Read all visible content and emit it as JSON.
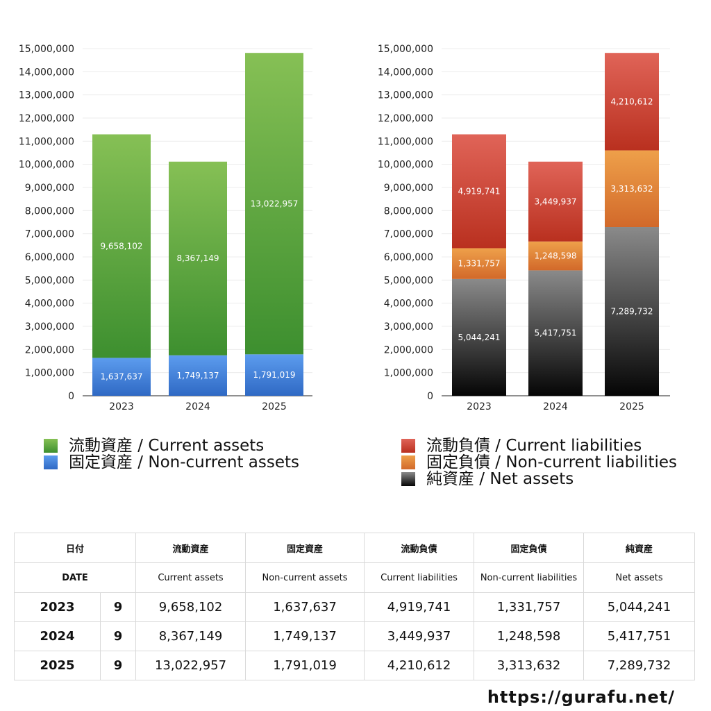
{
  "colors": {
    "current_assets": [
      "#86c055",
      "#3d8f2f"
    ],
    "noncurrent_assets": [
      "#5c9cee",
      "#2f69c4"
    ],
    "current_liabilities": [
      "#e06458",
      "#b9301f"
    ],
    "noncurrent_liabilities": [
      "#eea04a",
      "#d2692a"
    ],
    "net_assets": [
      "#8a8a8a",
      "#050505"
    ]
  },
  "chart_data": [
    {
      "type": "bar",
      "stacked": true,
      "categories": [
        "2023",
        "2024",
        "2025"
      ],
      "ylim": [
        0,
        15000000
      ],
      "yticks": [
        0,
        1000000,
        2000000,
        3000000,
        4000000,
        5000000,
        6000000,
        7000000,
        8000000,
        9000000,
        10000000,
        11000000,
        12000000,
        13000000,
        14000000,
        15000000
      ],
      "ytick_labels": [
        "0",
        "1,000,000",
        "2,000,000",
        "3,000,000",
        "4,000,000",
        "5,000,000",
        "6,000,000",
        "7,000,000",
        "8,000,000",
        "9,000,000",
        "10,000,000",
        "11,000,000",
        "12,000,000",
        "13,000,000",
        "14,000,000",
        "15,000,000"
      ],
      "series": [
        {
          "name": "固定資産 / Non-current assets",
          "key": "noncurrent_assets",
          "values": [
            1637637,
            1749137,
            1791019
          ],
          "labels": [
            "1,637,637",
            "1,749,137",
            "1,791,019"
          ]
        },
        {
          "name": "流動資産 / Current assets",
          "key": "current_assets",
          "values": [
            9658102,
            8367149,
            13022957
          ],
          "labels": [
            "9,658,102",
            "8,367,149",
            "13,022,957"
          ]
        }
      ],
      "legend": [
        {
          "label": "流動資産 / Current assets",
          "key": "current_assets"
        },
        {
          "label": "固定資産 / Non-current assets",
          "key": "noncurrent_assets"
        }
      ],
      "legend_position": "bottom"
    },
    {
      "type": "bar",
      "stacked": true,
      "categories": [
        "2023",
        "2024",
        "2025"
      ],
      "ylim": [
        0,
        15000000
      ],
      "yticks": [
        0,
        1000000,
        2000000,
        3000000,
        4000000,
        5000000,
        6000000,
        7000000,
        8000000,
        9000000,
        10000000,
        11000000,
        12000000,
        13000000,
        14000000,
        15000000
      ],
      "ytick_labels": [
        "0",
        "1,000,000",
        "2,000,000",
        "3,000,000",
        "4,000,000",
        "5,000,000",
        "6,000,000",
        "7,000,000",
        "8,000,000",
        "9,000,000",
        "10,000,000",
        "11,000,000",
        "12,000,000",
        "13,000,000",
        "14,000,000",
        "15,000,000"
      ],
      "series": [
        {
          "name": "純資産 / Net assets",
          "key": "net_assets",
          "values": [
            5044241,
            5417751,
            7289732
          ],
          "labels": [
            "5,044,241",
            "5,417,751",
            "7,289,732"
          ]
        },
        {
          "name": "固定負債 / Non-current liabilities",
          "key": "noncurrent_liabilities",
          "values": [
            1331757,
            1248598,
            3313632
          ],
          "labels": [
            "1,331,757",
            "1,248,598",
            "3,313,632"
          ]
        },
        {
          "name": "流動負債 / Current liabilities",
          "key": "current_liabilities",
          "values": [
            4919741,
            3449937,
            4210612
          ],
          "labels": [
            "4,919,741",
            "3,449,937",
            "4,210,612"
          ]
        }
      ],
      "legend": [
        {
          "label": "流動負債 / Current liabilities",
          "key": "current_liabilities"
        },
        {
          "label": "固定負債 / Non-current liabilities",
          "key": "noncurrent_liabilities"
        },
        {
          "label": "純資産 / Net assets",
          "key": "net_assets"
        }
      ],
      "legend_position": "bottom"
    }
  ],
  "table": {
    "header_jp": [
      "日付",
      "流動資産",
      "固定資産",
      "流動負債",
      "固定負債",
      "純資産"
    ],
    "header_en": [
      "DATE",
      "Current assets",
      "Non-current assets",
      "Current liabilities",
      "Non-current liabilities",
      "Net assets"
    ],
    "rows": [
      {
        "year": "2023",
        "month": "9",
        "values": [
          "9,658,102",
          "1,637,637",
          "4,919,741",
          "1,331,757",
          "5,044,241"
        ]
      },
      {
        "year": "2024",
        "month": "9",
        "values": [
          "8,367,149",
          "1,749,137",
          "3,449,937",
          "1,248,598",
          "5,417,751"
        ]
      },
      {
        "year": "2025",
        "month": "9",
        "values": [
          "13,022,957",
          "1,791,019",
          "4,210,612",
          "3,313,632",
          "7,289,732"
        ]
      }
    ]
  },
  "footer": {
    "url": "https://gurafu.net/"
  }
}
